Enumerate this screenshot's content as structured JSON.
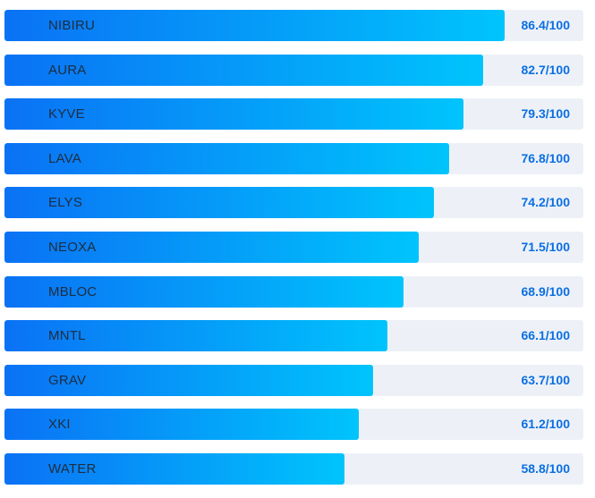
{
  "colors": {
    "track": "#edf1f7",
    "bar_start": "#0a72f5",
    "bar_end": "#00c4fc",
    "value_text": "#0b6fe3"
  },
  "chart_data": {
    "type": "bar",
    "orientation": "horizontal",
    "categories": [
      "NIBIRU",
      "AURA",
      "KYVE",
      "LAVA",
      "ELYS",
      "NEOXA",
      "MBLOC",
      "MNTL",
      "GRAV",
      "XKI",
      "WATER"
    ],
    "values": [
      86.4,
      82.7,
      79.3,
      76.8,
      74.2,
      71.5,
      68.9,
      66.1,
      63.7,
      61.2,
      58.8
    ],
    "value_labels": [
      "86.4/100",
      "82.7/100",
      "79.3/100",
      "76.8/100",
      "74.2/100",
      "71.5/100",
      "68.9/100",
      "66.1/100",
      "63.7/100",
      "61.2/100",
      "58.8/100"
    ],
    "xlim": [
      0,
      100
    ],
    "title": "",
    "xlabel": "",
    "ylabel": "",
    "grid": false,
    "legend": "none"
  }
}
